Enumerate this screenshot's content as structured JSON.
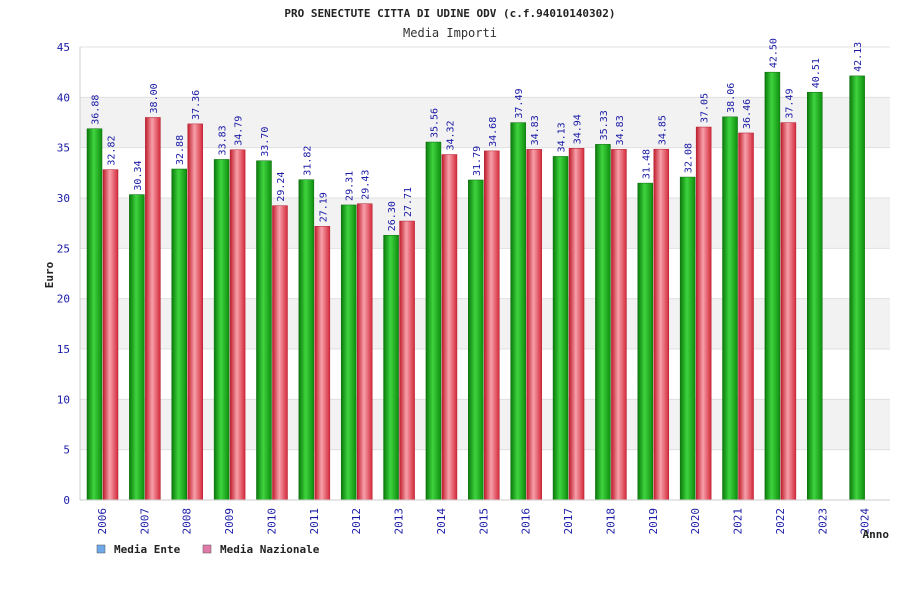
{
  "chart_data": {
    "type": "bar",
    "title": "PRO SENECTUTE CITTA DI UDINE ODV (c.f.94010140302)",
    "subtitle": "Media Importi",
    "xlabel": "Anno",
    "ylabel": "Euro",
    "ylim": [
      0,
      45
    ],
    "yticks": [
      0,
      5,
      10,
      15,
      20,
      25,
      30,
      35,
      40,
      45
    ],
    "grid": true,
    "legend_position": "bottom-left",
    "categories": [
      "2006",
      "2007",
      "2008",
      "2009",
      "2010",
      "2011",
      "2012",
      "2013",
      "2014",
      "2015",
      "2016",
      "2017",
      "2018",
      "2019",
      "2020",
      "2021",
      "2022",
      "2023",
      "2024"
    ],
    "series": [
      {
        "name": "Media Ente",
        "color": "#1fa81f",
        "legend_color": "#6fa8e8",
        "values": [
          36.88,
          30.34,
          32.88,
          33.83,
          33.7,
          31.82,
          29.31,
          26.3,
          35.56,
          31.79,
          37.49,
          34.13,
          35.33,
          31.48,
          32.08,
          38.06,
          42.5,
          40.51,
          42.13
        ],
        "labels": [
          "36.88",
          "30.34",
          "32.88",
          "33.83",
          "33.70",
          "31.82",
          "29.31",
          "26.30",
          "35.56",
          "31.79",
          "37.49",
          "34.13",
          "35.33",
          "31.48",
          "32.08",
          "38.06",
          "42.50",
          "40.51",
          "42.13"
        ]
      },
      {
        "name": "Media Nazionale",
        "color": "#e2394a",
        "legend_color": "#e07aa8",
        "values": [
          32.82,
          38.0,
          37.36,
          34.79,
          29.24,
          27.19,
          29.43,
          27.71,
          34.32,
          34.68,
          34.83,
          34.94,
          34.83,
          34.85,
          37.05,
          36.46,
          37.49,
          null,
          null
        ],
        "labels": [
          "32.82",
          "38.00",
          "37.36",
          "34.79",
          "29.24",
          "27.19",
          "29.43",
          "27.71",
          "34.32",
          "34.68",
          "34.83",
          "34.94",
          "34.83",
          "34.85",
          "37.05",
          "36.46",
          "37.49",
          null,
          null
        ]
      }
    ]
  }
}
